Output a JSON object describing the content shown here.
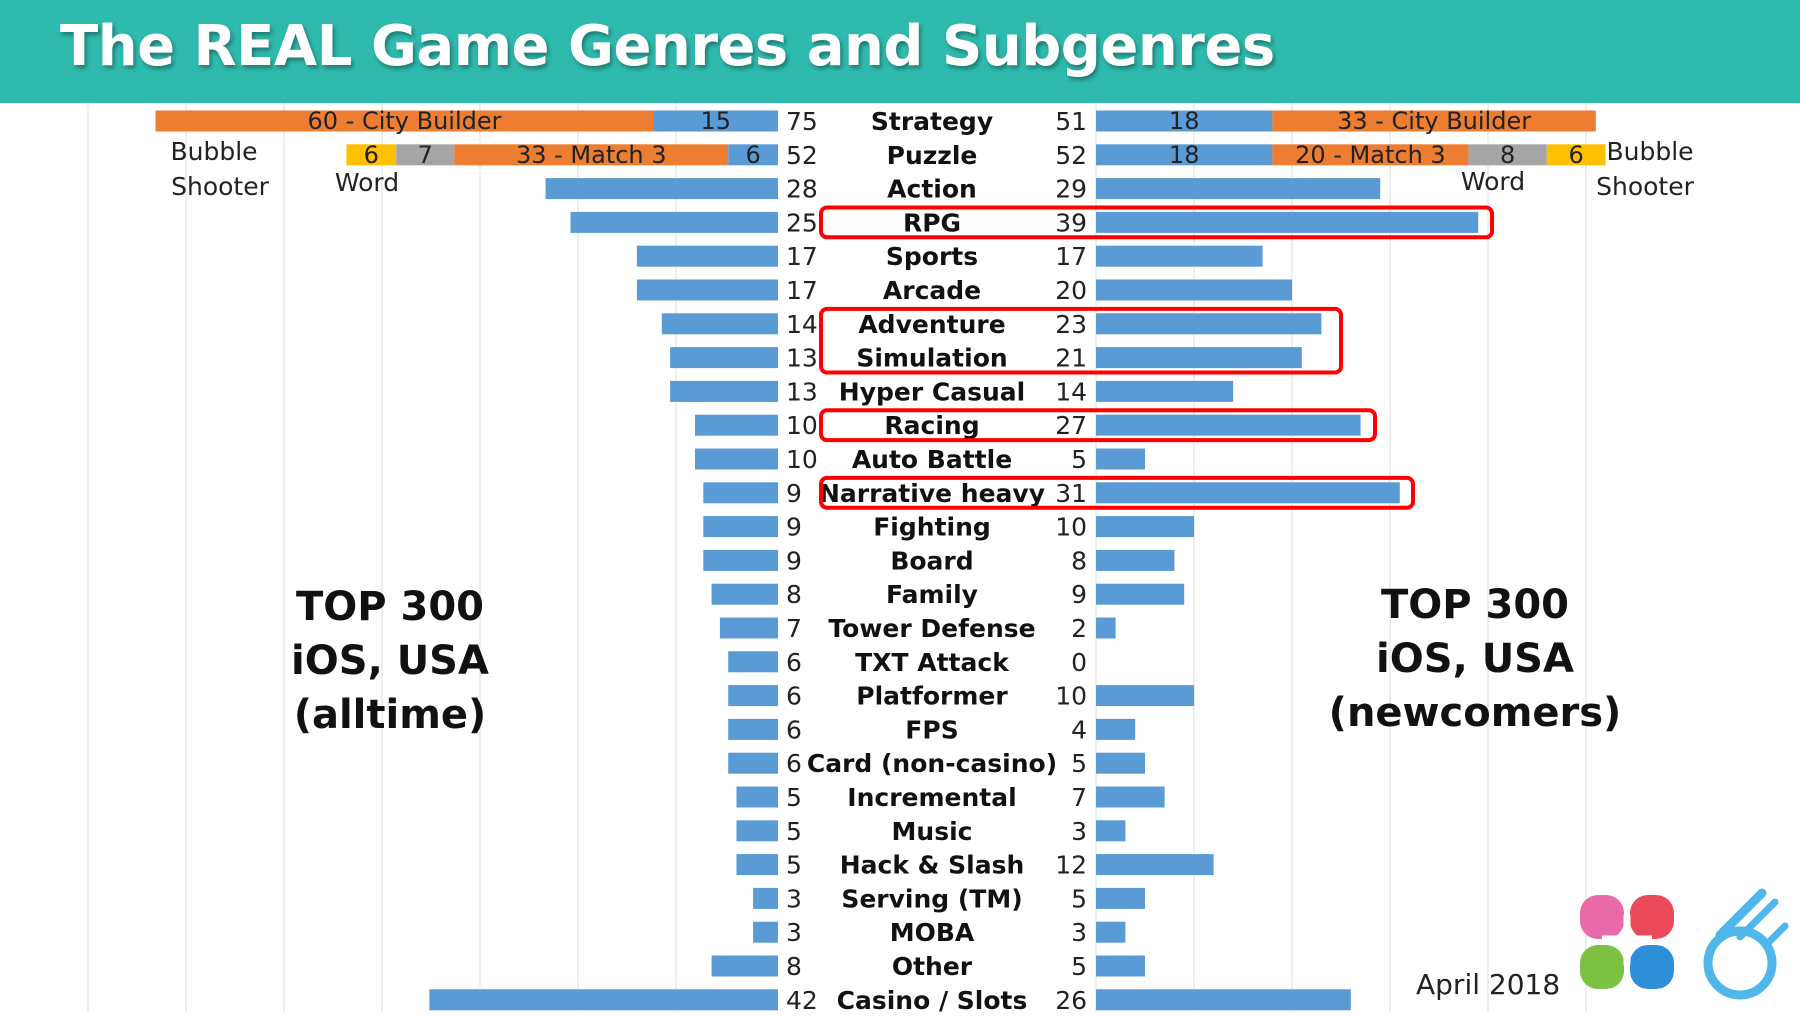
{
  "header": {
    "title": "The REAL Game Genres and Subgenres"
  },
  "chart_data": {
    "type": "bar",
    "orientation": "horizontal-butterfly",
    "title": "The REAL Game Genres and Subgenres",
    "left_panel_label": [
      "TOP 300",
      "iOS, USA",
      "(alltime)"
    ],
    "right_panel_label": [
      "TOP 300",
      "iOS, USA",
      "(newcomers)"
    ],
    "categories": [
      "Strategy",
      "Puzzle",
      "Action",
      "RPG",
      "Sports",
      "Arcade",
      "Adventure",
      "Simulation",
      "Hyper Casual",
      "Racing",
      "Auto Battle",
      "Narrative heavy",
      "Fighting",
      "Board",
      "Family",
      "Tower Defense",
      "TXT Attack",
      "Platformer",
      "FPS",
      "Card (non-casino)",
      "Incremental",
      "Music",
      "Hack & Slash",
      "Serving (TM)",
      "MOBA",
      "Other",
      "Casino / Slots"
    ],
    "series": [
      {
        "name": "TOP 300 iOS, USA (alltime)",
        "values": [
          75,
          52,
          28,
          25,
          17,
          17,
          14,
          13,
          13,
          10,
          10,
          9,
          9,
          9,
          8,
          7,
          6,
          6,
          6,
          6,
          5,
          5,
          5,
          3,
          3,
          8,
          42
        ]
      },
      {
        "name": "TOP 300 iOS, USA (newcomers)",
        "values": [
          51,
          52,
          29,
          39,
          17,
          20,
          23,
          21,
          14,
          27,
          5,
          31,
          10,
          8,
          9,
          2,
          0,
          10,
          4,
          5,
          7,
          3,
          12,
          5,
          3,
          5,
          26
        ]
      }
    ],
    "subgenres": {
      "alltime": {
        "Strategy": [
          {
            "name": "City Builder",
            "value": 60,
            "label": "60 - City Builder",
            "color": "#ed7d31"
          },
          {
            "name": "Other",
            "value": 15,
            "label": "15",
            "color": "#5b9bd5"
          }
        ],
        "Puzzle": [
          {
            "name": "Bubble Shooter",
            "value": 6,
            "label": "6",
            "color": "#ffc000"
          },
          {
            "name": "Word",
            "value": 7,
            "label": "7",
            "color": "#a5a5a5"
          },
          {
            "name": "Match 3",
            "value": 33,
            "label": "33 - Match 3",
            "color": "#ed7d31"
          },
          {
            "name": "Other",
            "value": 6,
            "label": "6",
            "color": "#5b9bd5"
          }
        ]
      },
      "newcomers": {
        "Strategy": [
          {
            "name": "Other",
            "value": 18,
            "label": "18",
            "color": "#5b9bd5"
          },
          {
            "name": "City Builder",
            "value": 33,
            "label": "33 - City Builder",
            "color": "#ed7d31"
          }
        ],
        "Puzzle": [
          {
            "name": "Other",
            "value": 18,
            "label": "18",
            "color": "#5b9bd5"
          },
          {
            "name": "Match 3",
            "value": 20,
            "label": "20 - Match 3",
            "color": "#ed7d31"
          },
          {
            "name": "Word",
            "value": 8,
            "label": "8",
            "color": "#a5a5a5"
          },
          {
            "name": "Bubble Shooter",
            "value": 6,
            "label": "6",
            "color": "#ffc000"
          }
        ]
      }
    },
    "annotations": {
      "left_bubble_shooter": [
        "Bubble",
        "Shooter"
      ],
      "left_word": "Word",
      "right_word": "Word",
      "right_bubble_shooter": [
        "Bubble",
        "Shooter"
      ]
    },
    "highlighted": [
      [
        "RPG"
      ],
      [
        "Adventure",
        "Simulation"
      ],
      [
        "Racing"
      ],
      [
        "Narrative heavy"
      ]
    ],
    "highlight_color": "#ff0000",
    "bar_color": "#5b9bd5",
    "gridlines": true
  },
  "footer": {
    "date": "April 2018"
  }
}
